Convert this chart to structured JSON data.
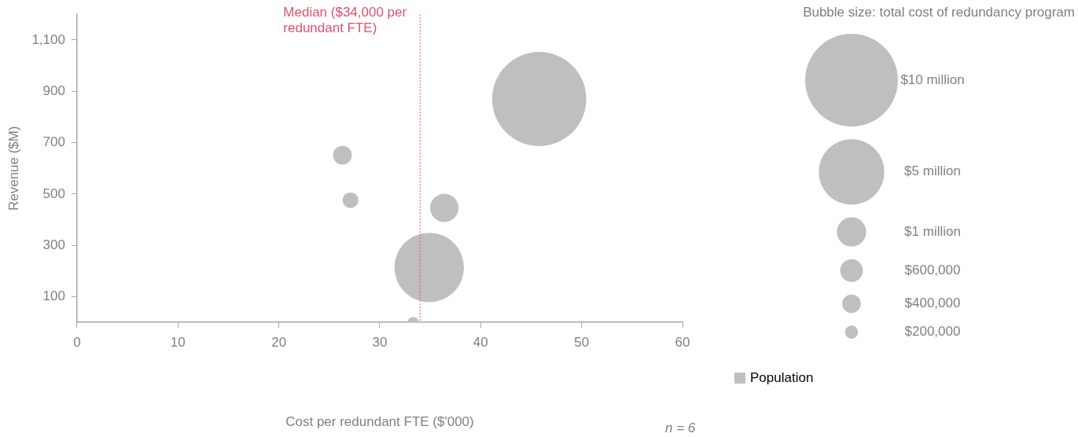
{
  "chart_data": {
    "type": "bubble",
    "xlabel": "Cost per redundant FTE ($'000)",
    "ylabel": "Revenue ($M)",
    "legend_title": "Bubble size: total cost of redundancy program",
    "x": [
      45.8,
      26.3,
      27.1,
      36.4,
      34.9,
      33.3
    ],
    "series": [
      {
        "name": "Population",
        "color": "#bfbfbf",
        "values": [
          870,
          651,
          476,
          446,
          214,
          0
        ],
        "sizes": [
          10.3,
          0.41,
          0.29,
          0.93,
          5.6,
          0.14
        ]
      }
    ],
    "size_legend": [
      {
        "value": 10,
        "label": "$10 million"
      },
      {
        "value": 5,
        "label": "$5 million"
      },
      {
        "value": 1,
        "label": "$1 million"
      },
      {
        "value": 0.6,
        "label": "$600,000"
      },
      {
        "value": 0.4,
        "label": "$400,000"
      },
      {
        "value": 0.2,
        "label": "$200,000"
      }
    ],
    "xlim": [
      0,
      60
    ],
    "xticks": [
      0,
      10,
      20,
      30,
      40,
      50,
      60
    ],
    "ylim": [
      0,
      1200
    ],
    "yticks": [
      {
        "value": 100,
        "label": "100"
      },
      {
        "value": 300,
        "label": "300"
      },
      {
        "value": 500,
        "label": "500"
      },
      {
        "value": 700,
        "label": "700"
      },
      {
        "value": 900,
        "label": "900"
      },
      {
        "value": 1100,
        "label": "1,100"
      }
    ],
    "ref_lines": [
      {
        "axis": "x",
        "value": 34,
        "label": "Median ($34,000 per redundant FTE)",
        "color": "#e0506a",
        "line_style": "dotted"
      }
    ],
    "annotations": [
      "n = 6"
    ],
    "grid": false,
    "legend": "right"
  }
}
